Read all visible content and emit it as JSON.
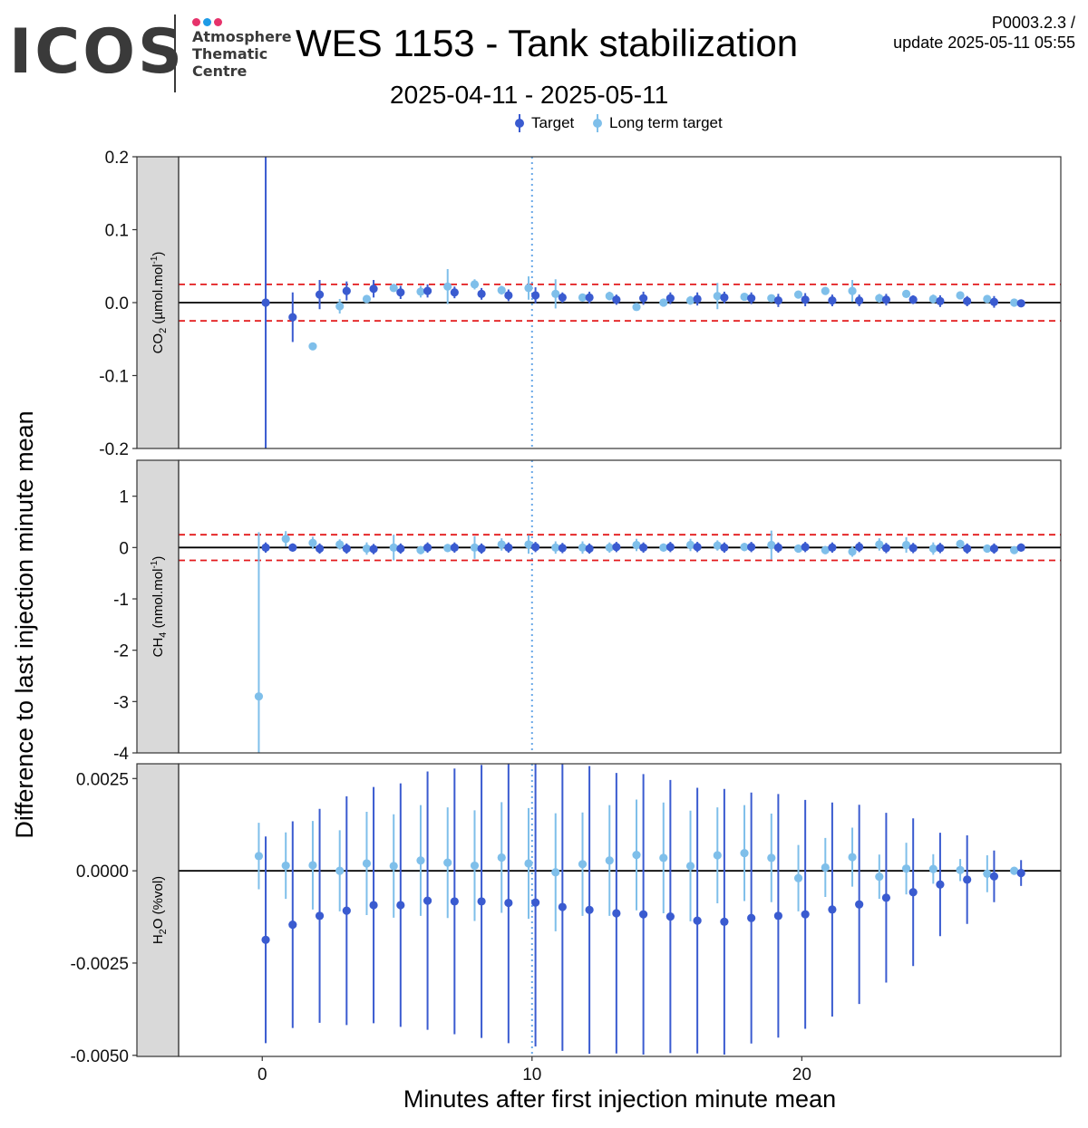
{
  "header": {
    "logo_text": "ICOS",
    "logo_lines": [
      "Atmosphere",
      "Thematic",
      "Centre"
    ],
    "logo_dot_colors": [
      "#e6336b",
      "#1e9be6",
      "#e6336b"
    ],
    "title": "WES 1153 - Tank stabilization",
    "subtitle": "2025-04-11 - 2025-05-11",
    "version": "P0003.2.3 /",
    "update": "update  2025-05-11 05:55"
  },
  "legend": {
    "target_label": "Target",
    "long_term_label": "Long term target"
  },
  "colors": {
    "target": "#3a5bd0",
    "long_term": "#7fbfea",
    "threshold": "#e31a1c",
    "vline": "#6aa8e8",
    "strip": "#d9d9d9"
  },
  "chart_data": {
    "type": "scatter",
    "title": "WES 1153 - Tank stabilization",
    "subtitle": "2025-04-11 - 2025-05-11",
    "xlabel": "Minutes after first injection minute mean",
    "ylabel": "Difference to last injection minute mean",
    "xlim": [
      -3.1,
      29.6
    ],
    "x_ticks": [
      0,
      10,
      20
    ],
    "x_tick_labels": [
      "0",
      "10",
      "20"
    ],
    "vline_x": 10,
    "x": [
      0,
      1,
      2,
      3,
      4,
      5,
      6,
      7,
      8,
      9,
      10,
      11,
      12,
      13,
      14,
      15,
      16,
      17,
      18,
      19,
      20,
      21,
      22,
      23,
      24,
      25,
      26,
      27,
      28
    ],
    "panels": [
      {
        "label_main": "CO",
        "label_sub": "2",
        "label_rest": " (µmol.mol",
        "label_sup": "-1",
        "label_end": ")",
        "ylim": [
          -0.2,
          0.2
        ],
        "y_ticks": [
          -0.2,
          -0.1,
          0.0,
          0.1,
          0.2
        ],
        "y_tick_labels": [
          "-0.2",
          "-0.1",
          "0.0",
          "0.1",
          "0.2"
        ],
        "thresholds": [
          0.025,
          -0.025
        ],
        "series": [
          {
            "name": "Target",
            "y": [
              0.0,
              -0.02,
              0.011,
              0.016,
              0.019,
              0.014,
              0.016,
              0.014,
              0.012,
              0.01,
              0.01,
              0.007,
              0.007,
              0.004,
              0.006,
              0.006,
              0.005,
              0.007,
              0.006,
              0.003,
              0.004,
              0.003,
              0.003,
              0.004,
              0.004,
              0.002,
              0.002,
              0.001,
              -0.001
            ],
            "err": [
              0.2,
              0.034,
              0.02,
              0.013,
              0.012,
              0.009,
              0.009,
              0.008,
              0.008,
              0.008,
              0.011,
              0.007,
              0.008,
              0.007,
              0.009,
              0.008,
              0.009,
              0.008,
              0.008,
              0.009,
              0.009,
              0.008,
              0.008,
              0.008,
              0.006,
              0.008,
              0.007,
              0.008,
              0.004
            ]
          },
          {
            "name": "Long term target",
            "y": [
              null,
              null,
              -0.06,
              -0.005,
              0.005,
              0.02,
              0.015,
              0.022,
              0.025,
              0.017,
              0.02,
              0.012,
              0.007,
              0.009,
              -0.006,
              0.0,
              0.003,
              0.009,
              0.008,
              0.006,
              0.011,
              0.016,
              0.016,
              0.006,
              0.012,
              0.005,
              0.01,
              0.005,
              0.0
            ],
            "err": [
              0,
              0,
              0,
              0.01,
              0.005,
              0.005,
              0.008,
              0.024,
              0.007,
              0.006,
              0.016,
              0.02,
              0.005,
              0.006,
              0.005,
              0.004,
              0.006,
              0.018,
              0.005,
              0.005,
              0.005,
              0.004,
              0.015,
              0.006,
              0.005,
              0.006,
              0.005,
              0.005,
              0.003
            ]
          }
        ]
      },
      {
        "label_main": "CH",
        "label_sub": "4",
        "label_rest": " (nmol.mol",
        "label_sup": "-1",
        "label_end": ")",
        "ylim": [
          -4.0,
          1.7
        ],
        "y_ticks": [
          -4,
          -3,
          -2,
          -1,
          0,
          1
        ],
        "y_tick_labels": [
          "-4",
          "-3",
          "-2",
          "-1",
          "0",
          "1"
        ],
        "thresholds": [
          0.25,
          -0.25
        ],
        "series": [
          {
            "name": "Target",
            "y": [
              0.0,
              0.0,
              -0.02,
              -0.02,
              -0.03,
              -0.02,
              0.0,
              0.0,
              -0.02,
              0.0,
              0.01,
              -0.01,
              -0.02,
              0.01,
              0.0,
              0.01,
              0.01,
              0.0,
              0.01,
              0.0,
              0.01,
              0.0,
              0.01,
              -0.01,
              -0.01,
              -0.01,
              -0.02,
              -0.02,
              0.0
            ],
            "err": [
              0.1,
              0.08,
              0.1,
              0.1,
              0.1,
              0.1,
              0.1,
              0.1,
              0.1,
              0.1,
              0.1,
              0.1,
              0.1,
              0.1,
              0.1,
              0.1,
              0.1,
              0.1,
              0.1,
              0.1,
              0.1,
              0.1,
              0.1,
              0.1,
              0.1,
              0.1,
              0.1,
              0.1,
              0.08
            ]
          },
          {
            "name": "Long term target",
            "y": [
              -2.9,
              0.17,
              0.09,
              0.06,
              -0.02,
              0.0,
              -0.05,
              -0.01,
              0.0,
              0.06,
              0.06,
              0.0,
              0.0,
              0.0,
              0.05,
              0.0,
              0.05,
              0.04,
              0.01,
              0.05,
              -0.02,
              -0.05,
              -0.08,
              0.06,
              0.05,
              -0.02,
              0.07,
              -0.02,
              -0.05
            ],
            "err": [
              3.2,
              0.15,
              0.12,
              0.1,
              0.12,
              0.25,
              0.08,
              0.08,
              0.22,
              0.12,
              0.18,
              0.12,
              0.12,
              0.1,
              0.12,
              0.08,
              0.12,
              0.1,
              0.08,
              0.28,
              0.08,
              0.08,
              0.1,
              0.12,
              0.15,
              0.12,
              0.08,
              0.08,
              0.05
            ]
          }
        ]
      },
      {
        "label_main": "H",
        "label_sub": "2",
        "label_rest": "O (%vol)",
        "label_sup": "",
        "label_end": "",
        "ylim": [
          -0.00503,
          0.0029
        ],
        "y_ticks": [
          -0.005,
          -0.0025,
          0.0,
          0.0025
        ],
        "y_tick_labels": [
          "-0.0050",
          "-0.0025",
          "0.0000",
          "0.0025"
        ],
        "thresholds": [],
        "series": [
          {
            "name": "Target",
            "y": [
              -0.00187,
              -0.00146,
              -0.00122,
              -0.00108,
              -0.00093,
              -0.00093,
              -0.00081,
              -0.00083,
              -0.00083,
              -0.00087,
              -0.00086,
              -0.00098,
              -0.00106,
              -0.00115,
              -0.00118,
              -0.00124,
              -0.00135,
              -0.00138,
              -0.00128,
              -0.00122,
              -0.00118,
              -0.00105,
              -0.00091,
              -0.00073,
              -0.00058,
              -0.00037,
              -0.00024,
              -0.00015,
              -6e-05
            ],
            "err": [
              0.0028,
              0.0028,
              0.0029,
              0.0031,
              0.0032,
              0.0033,
              0.0035,
              0.0036,
              0.0037,
              0.0038,
              0.0039,
              0.0039,
              0.0039,
              0.0038,
              0.0038,
              0.0037,
              0.0036,
              0.0036,
              0.0034,
              0.0033,
              0.0031,
              0.0029,
              0.0027,
              0.0023,
              0.002,
              0.0014,
              0.0012,
              0.0007,
              0.00035
            ]
          },
          {
            "name": "Long term target",
            "y": [
              0.0004,
              0.00014,
              0.00015,
              0.0,
              0.0002,
              0.00013,
              0.00028,
              0.00022,
              0.00014,
              0.00036,
              0.0002,
              -4e-05,
              0.00018,
              0.00028,
              0.00043,
              0.00035,
              0.00013,
              0.00042,
              0.00048,
              0.00035,
              -0.0002,
              9e-05,
              0.00037,
              -0.00016,
              6e-05,
              5e-05,
              2e-05,
              -8e-05,
              0.0
            ],
            "err": [
              0.0009,
              0.0009,
              0.0012,
              0.0011,
              0.0014,
              0.0014,
              0.0015,
              0.0015,
              0.0015,
              0.0015,
              0.0015,
              0.0016,
              0.0014,
              0.0015,
              0.0015,
              0.0015,
              0.0015,
              0.0013,
              0.0013,
              0.0012,
              0.0009,
              0.0008,
              0.0008,
              0.0006,
              0.0007,
              0.0004,
              0.0003,
              0.0005,
              0.0001
            ]
          }
        ]
      }
    ]
  }
}
